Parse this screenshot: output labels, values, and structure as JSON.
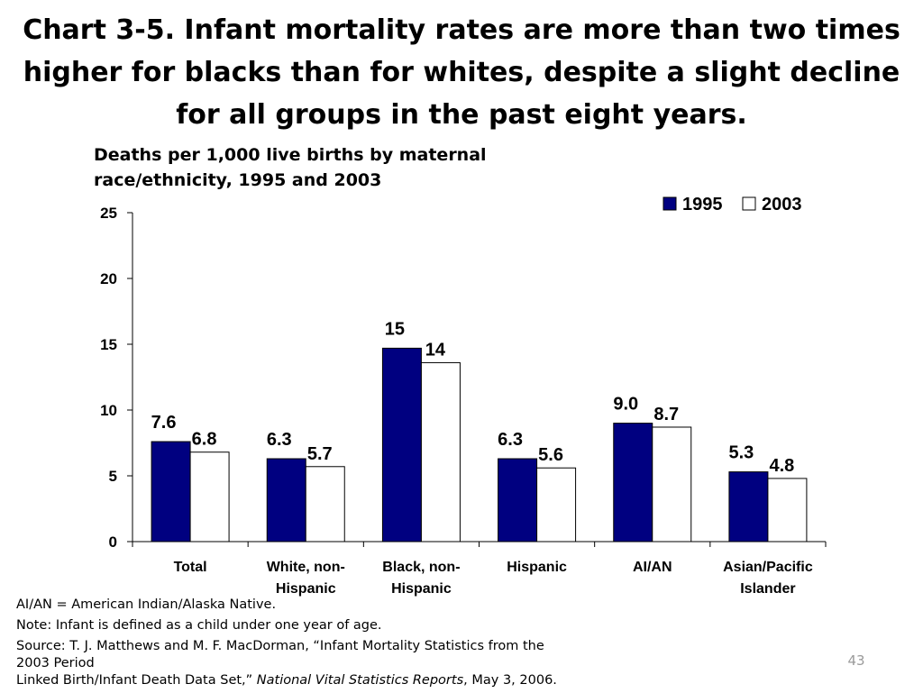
{
  "slide": {
    "title": "Chart 3-5. Infant mortality rates are more than two times higher for blacks than for whites, despite a slight decline for all groups in the past eight years.",
    "page_number": "43"
  },
  "chart_data": {
    "type": "bar",
    "title": "Deaths per 1,000 live births by maternal race/ethnicity, 1995 and 2003",
    "categories": [
      [
        "Total"
      ],
      [
        "White, non-",
        "Hispanic"
      ],
      [
        "Black, non-",
        "Hispanic"
      ],
      [
        "Hispanic"
      ],
      [
        "AI/AN"
      ],
      [
        "Asian/Pacific",
        "Islander"
      ]
    ],
    "series": [
      {
        "name": "1995",
        "color": "#000080",
        "values": [
          7.6,
          6.3,
          14.7,
          6.3,
          9.0,
          5.3
        ],
        "labels": [
          "7.6",
          "6.3",
          "15",
          "6.3",
          "9.0",
          "5.3"
        ]
      },
      {
        "name": "2003",
        "color": "#ffffff",
        "values": [
          6.8,
          5.7,
          13.6,
          5.6,
          8.7,
          4.8
        ],
        "labels": [
          "6.8",
          "5.7",
          "14",
          "5.6",
          "8.7",
          "4.8"
        ]
      }
    ],
    "ylim": [
      0,
      25
    ],
    "yticks": [
      "0",
      "5",
      "10",
      "15",
      "20",
      "25"
    ],
    "grid": false,
    "legend_position": "top-right",
    "xlabel": "",
    "ylabel": ""
  },
  "notes": {
    "abbreviation": "AI/AN = American Indian/Alaska Native.",
    "definition": "Note: Infant is defined as a child under one year of age.",
    "source_line1": "Source: T. J. Matthews and M. F. MacDorman, “Infant Mortality Statistics from the",
    "source_line2": "2003 Period",
    "source_line3_plain": "Linked Birth/Infant Death Data Set,”",
    "source_line3_italic": "National Vital Statistics Reports",
    "source_line3_end": ", May 3, 2006."
  }
}
